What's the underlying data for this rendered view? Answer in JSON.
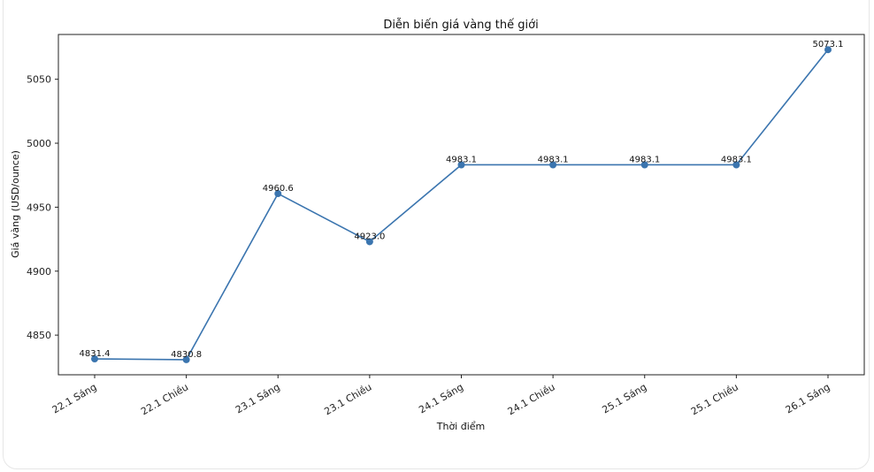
{
  "chart_data": {
    "type": "line",
    "title": "Diễn biến giá vàng thế giới",
    "xlabel": "Thời điểm",
    "ylabel": "Giá vàng (USD/ounce)",
    "categories": [
      "22.1 Sáng",
      "22.1 Chiều",
      "23.1 Sáng",
      "23.1 Chiều",
      "24.1 Sáng",
      "24.1 Chiều",
      "25.1 Sáng",
      "25.1 Chiều",
      "26.1 Sáng"
    ],
    "series": [
      {
        "name": "Giá vàng",
        "values": [
          4831.4,
          4830.8,
          4960.6,
          4923.0,
          4983.1,
          4983.1,
          4983.1,
          4983.1,
          5073.1
        ],
        "labels": [
          "4831.4",
          "4830.8",
          "4960.6",
          "4923.0",
          "4983.1",
          "4983.1",
          "4983.1",
          "4983.1",
          "5073.1"
        ],
        "color": "#3b75af",
        "marker": "circle"
      }
    ],
    "yticks": [
      4850,
      4900,
      4950,
      5000,
      5050
    ],
    "ylim": [
      4819,
      5085
    ],
    "grid": false,
    "legend": false
  }
}
